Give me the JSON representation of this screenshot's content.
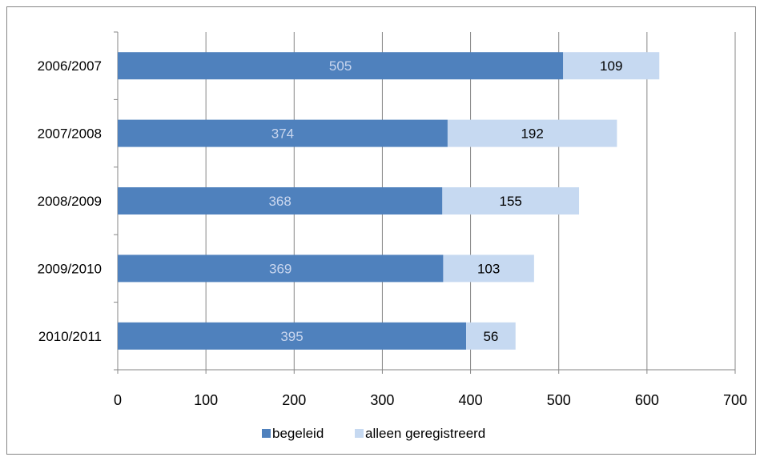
{
  "chart_data": {
    "type": "bar",
    "orientation": "horizontal",
    "stacked": true,
    "categories": [
      "2006/2007",
      "2007/2008",
      "2008/2009",
      "2009/2010",
      "2010/2011"
    ],
    "series": [
      {
        "name": "begeleid",
        "values": [
          505,
          374,
          368,
          369,
          395
        ],
        "color": "#4F81BD",
        "label_color": "#C9D6EE"
      },
      {
        "name": "alleen geregistreerd",
        "values": [
          109,
          192,
          155,
          103,
          56
        ],
        "color": "#C6D9F1",
        "label_color": "#000000"
      }
    ],
    "xlim": [
      0,
      700
    ],
    "xticks": [
      0,
      100,
      200,
      300,
      400,
      500,
      600,
      700
    ],
    "grid": "vertical",
    "legend_position": "bottom",
    "title": "",
    "xlabel": "",
    "ylabel": ""
  }
}
